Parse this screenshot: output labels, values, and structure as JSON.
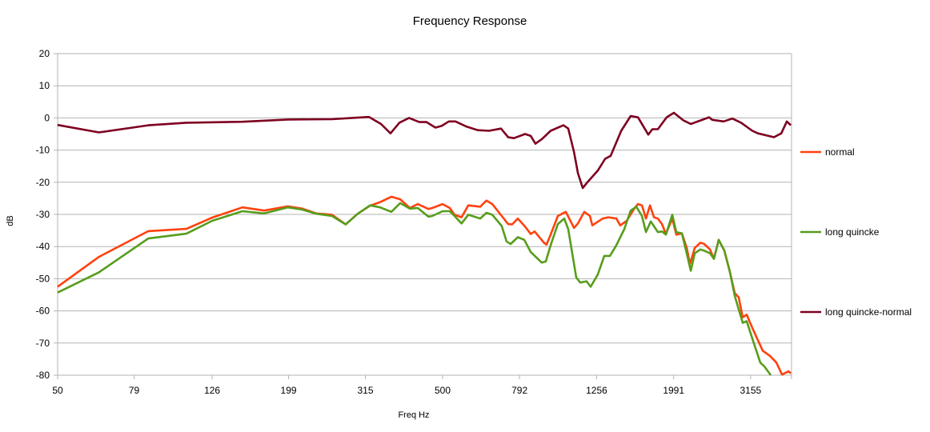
{
  "chart_data": {
    "type": "line",
    "title": "Frequency Response",
    "xlabel": "Freq Hz",
    "ylabel": "dB",
    "xscale": "log",
    "xlim": [
      50,
      4030
    ],
    "ylim": [
      -80,
      20
    ],
    "yticks": [
      20,
      10,
      0,
      -10,
      -20,
      -30,
      -40,
      -50,
      -60,
      -70,
      -80
    ],
    "xticks": [
      50,
      79,
      126,
      199,
      315,
      500,
      792,
      1256,
      1991,
      3155
    ],
    "grid": "horizontal",
    "legend_position": "right",
    "series": [
      {
        "name": "normal",
        "color": "#ff420e",
        "points": [
          [
            50,
            -52.5
          ],
          [
            64,
            -43.2
          ],
          [
            86,
            -35.2
          ],
          [
            108,
            -34.5
          ],
          [
            126,
            -31
          ],
          [
            151,
            -27.8
          ],
          [
            172,
            -28.8
          ],
          [
            198,
            -27.5
          ],
          [
            216,
            -28.2
          ],
          [
            235,
            -29.7
          ],
          [
            258,
            -30.1
          ],
          [
            280,
            -33.1
          ],
          [
            301,
            -29.8
          ],
          [
            324,
            -27.3
          ],
          [
            344,
            -26.2
          ],
          [
            368,
            -24.5
          ],
          [
            388,
            -25.3
          ],
          [
            411,
            -28
          ],
          [
            431,
            -26.8
          ],
          [
            459,
            -28.3
          ],
          [
            470,
            -28.0
          ],
          [
            500,
            -26.8
          ],
          [
            522,
            -28.0
          ],
          [
            537,
            -30.1
          ],
          [
            560,
            -30.9
          ],
          [
            583,
            -27.2
          ],
          [
            626,
            -27.6
          ],
          [
            650,
            -25.7
          ],
          [
            673,
            -26.8
          ],
          [
            712,
            -30.5
          ],
          [
            740,
            -33.0
          ],
          [
            758,
            -33.1
          ],
          [
            784,
            -31.3
          ],
          [
            819,
            -33.8
          ],
          [
            847,
            -36.1
          ],
          [
            867,
            -35.3
          ],
          [
            918,
            -38.9
          ],
          [
            931,
            -39.4
          ],
          [
            954,
            -36.3
          ],
          [
            996,
            -30.5
          ],
          [
            1025,
            -29.7
          ],
          [
            1045,
            -29.2
          ],
          [
            1097,
            -34.2
          ],
          [
            1123,
            -32.8
          ],
          [
            1167,
            -29.2
          ],
          [
            1207,
            -30.5
          ],
          [
            1224,
            -33.4
          ],
          [
            1302,
            -31.3
          ],
          [
            1347,
            -30.9
          ],
          [
            1413,
            -31.3
          ],
          [
            1447,
            -33.4
          ],
          [
            1504,
            -32.0
          ],
          [
            1577,
            -28.0
          ],
          [
            1608,
            -26.8
          ],
          [
            1647,
            -27.2
          ],
          [
            1687,
            -31.3
          ],
          [
            1728,
            -27.2
          ],
          [
            1770,
            -30.9
          ],
          [
            1812,
            -31.3
          ],
          [
            1857,
            -33.0
          ],
          [
            1901,
            -36.1
          ],
          [
            1975,
            -31.3
          ],
          [
            2023,
            -36.3
          ],
          [
            2092,
            -35.9
          ],
          [
            2153,
            -40.4
          ],
          [
            2195,
            -45.4
          ],
          [
            2259,
            -40.4
          ],
          [
            2336,
            -38.8
          ],
          [
            2392,
            -39.2
          ],
          [
            2474,
            -40.9
          ],
          [
            2533,
            -43.8
          ],
          [
            2607,
            -37.9
          ],
          [
            2697,
            -41.3
          ],
          [
            2788,
            -47.9
          ],
          [
            2870,
            -54.5
          ],
          [
            2939,
            -55.8
          ],
          [
            3010,
            -62.0
          ],
          [
            3082,
            -61.2
          ],
          [
            3188,
            -65.3
          ],
          [
            3392,
            -72.4
          ],
          [
            3543,
            -74.0
          ],
          [
            3681,
            -76.1
          ],
          [
            3807,
            -79.8
          ],
          [
            3955,
            -78.8
          ],
          [
            4012,
            -79.4
          ]
        ]
      },
      {
        "name": "long quincke",
        "color": "#579d1c",
        "points": [
          [
            50,
            -54.3
          ],
          [
            64,
            -48
          ],
          [
            86,
            -37.5
          ],
          [
            108,
            -36
          ],
          [
            126,
            -32
          ],
          [
            151,
            -29
          ],
          [
            172,
            -29.7
          ],
          [
            198,
            -27.8
          ],
          [
            216,
            -28.5
          ],
          [
            235,
            -29.8
          ],
          [
            258,
            -30.5
          ],
          [
            280,
            -33.1
          ],
          [
            301,
            -29.8
          ],
          [
            324,
            -27.2
          ],
          [
            344,
            -27.8
          ],
          [
            368,
            -29.2
          ],
          [
            388,
            -26.5
          ],
          [
            411,
            -28.2
          ],
          [
            431,
            -28
          ],
          [
            459,
            -30.7
          ],
          [
            470,
            -30.5
          ],
          [
            500,
            -29.0
          ],
          [
            522,
            -29.0
          ],
          [
            537,
            -30.5
          ],
          [
            560,
            -32.8
          ],
          [
            583,
            -30.1
          ],
          [
            626,
            -31.3
          ],
          [
            650,
            -29.5
          ],
          [
            673,
            -30.1
          ],
          [
            712,
            -33.6
          ],
          [
            733,
            -38.4
          ],
          [
            751,
            -39.2
          ],
          [
            784,
            -37.1
          ],
          [
            815,
            -37.9
          ],
          [
            847,
            -41.7
          ],
          [
            905,
            -45.0
          ],
          [
            927,
            -44.6
          ],
          [
            954,
            -39.6
          ],
          [
            996,
            -33.0
          ],
          [
            1035,
            -31.3
          ],
          [
            1060,
            -34.6
          ],
          [
            1112,
            -49.6
          ],
          [
            1139,
            -51.2
          ],
          [
            1183,
            -50.8
          ],
          [
            1212,
            -52.5
          ],
          [
            1265,
            -48.7
          ],
          [
            1315,
            -42.9
          ],
          [
            1360,
            -42.9
          ],
          [
            1413,
            -39.6
          ],
          [
            1482,
            -34.6
          ],
          [
            1540,
            -28.8
          ],
          [
            1593,
            -27.6
          ],
          [
            1647,
            -30.5
          ],
          [
            1687,
            -35.5
          ],
          [
            1736,
            -32.2
          ],
          [
            1812,
            -35.5
          ],
          [
            1857,
            -35.3
          ],
          [
            1901,
            -36.3
          ],
          [
            1975,
            -30.1
          ],
          [
            2023,
            -35.5
          ],
          [
            2092,
            -35.9
          ],
          [
            2153,
            -42.1
          ],
          [
            2206,
            -47.5
          ],
          [
            2259,
            -42.1
          ],
          [
            2336,
            -40.9
          ],
          [
            2392,
            -41.3
          ],
          [
            2474,
            -42.1
          ],
          [
            2533,
            -43.8
          ],
          [
            2607,
            -37.9
          ],
          [
            2697,
            -41.3
          ],
          [
            2788,
            -47.9
          ],
          [
            2870,
            -55.4
          ],
          [
            3010,
            -63.7
          ],
          [
            3082,
            -63.2
          ],
          [
            3188,
            -68.6
          ],
          [
            3344,
            -76.1
          ],
          [
            3426,
            -77.3
          ],
          [
            3560,
            -80
          ]
        ]
      },
      {
        "name": "long quincke-normal",
        "color": "#7e0021",
        "points": [
          [
            50,
            -2.2
          ],
          [
            64,
            -4.5
          ],
          [
            86,
            -2.3
          ],
          [
            108,
            -1.5
          ],
          [
            151,
            -1.2
          ],
          [
            198,
            -0.5
          ],
          [
            258,
            -0.4
          ],
          [
            291,
            0
          ],
          [
            322,
            0.3
          ],
          [
            346,
            -1.9
          ],
          [
            366,
            -4.8
          ],
          [
            386,
            -1.5
          ],
          [
            409,
            0
          ],
          [
            435,
            -1.3
          ],
          [
            454,
            -1.3
          ],
          [
            479,
            -3.0
          ],
          [
            497,
            -2.5
          ],
          [
            519,
            -1.1
          ],
          [
            540,
            -1.1
          ],
          [
            577,
            -2.7
          ],
          [
            617,
            -3.8
          ],
          [
            660,
            -4.0
          ],
          [
            709,
            -3.3
          ],
          [
            740,
            -6.0
          ],
          [
            766,
            -6.3
          ],
          [
            819,
            -5.0
          ],
          [
            847,
            -5.6
          ],
          [
            871,
            -8.0
          ],
          [
            905,
            -6.6
          ],
          [
            954,
            -4.0
          ],
          [
            1030,
            -2.3
          ],
          [
            1060,
            -3.3
          ],
          [
            1097,
            -10.6
          ],
          [
            1123,
            -17.2
          ],
          [
            1144,
            -20.1
          ],
          [
            1156,
            -21.8
          ],
          [
            1195,
            -19.7
          ],
          [
            1265,
            -16.4
          ],
          [
            1322,
            -12.7
          ],
          [
            1366,
            -11.8
          ],
          [
            1455,
            -4.0
          ],
          [
            1540,
            0.6
          ],
          [
            1608,
            0.2
          ],
          [
            1711,
            -5.2
          ],
          [
            1753,
            -3.5
          ],
          [
            1812,
            -3.5
          ],
          [
            1910,
            0.2
          ],
          [
            1994,
            1.6
          ],
          [
            2113,
            -0.8
          ],
          [
            2206,
            -1.9
          ],
          [
            2461,
            0.2
          ],
          [
            2509,
            -0.6
          ],
          [
            2684,
            -1.1
          ],
          [
            2829,
            -0.2
          ],
          [
            2981,
            -1.5
          ],
          [
            3188,
            -4.0
          ],
          [
            3296,
            -4.8
          ],
          [
            3628,
            -6.0
          ],
          [
            3790,
            -4.8
          ],
          [
            3917,
            -1.1
          ],
          [
            4012,
            -2.3
          ]
        ]
      }
    ]
  }
}
